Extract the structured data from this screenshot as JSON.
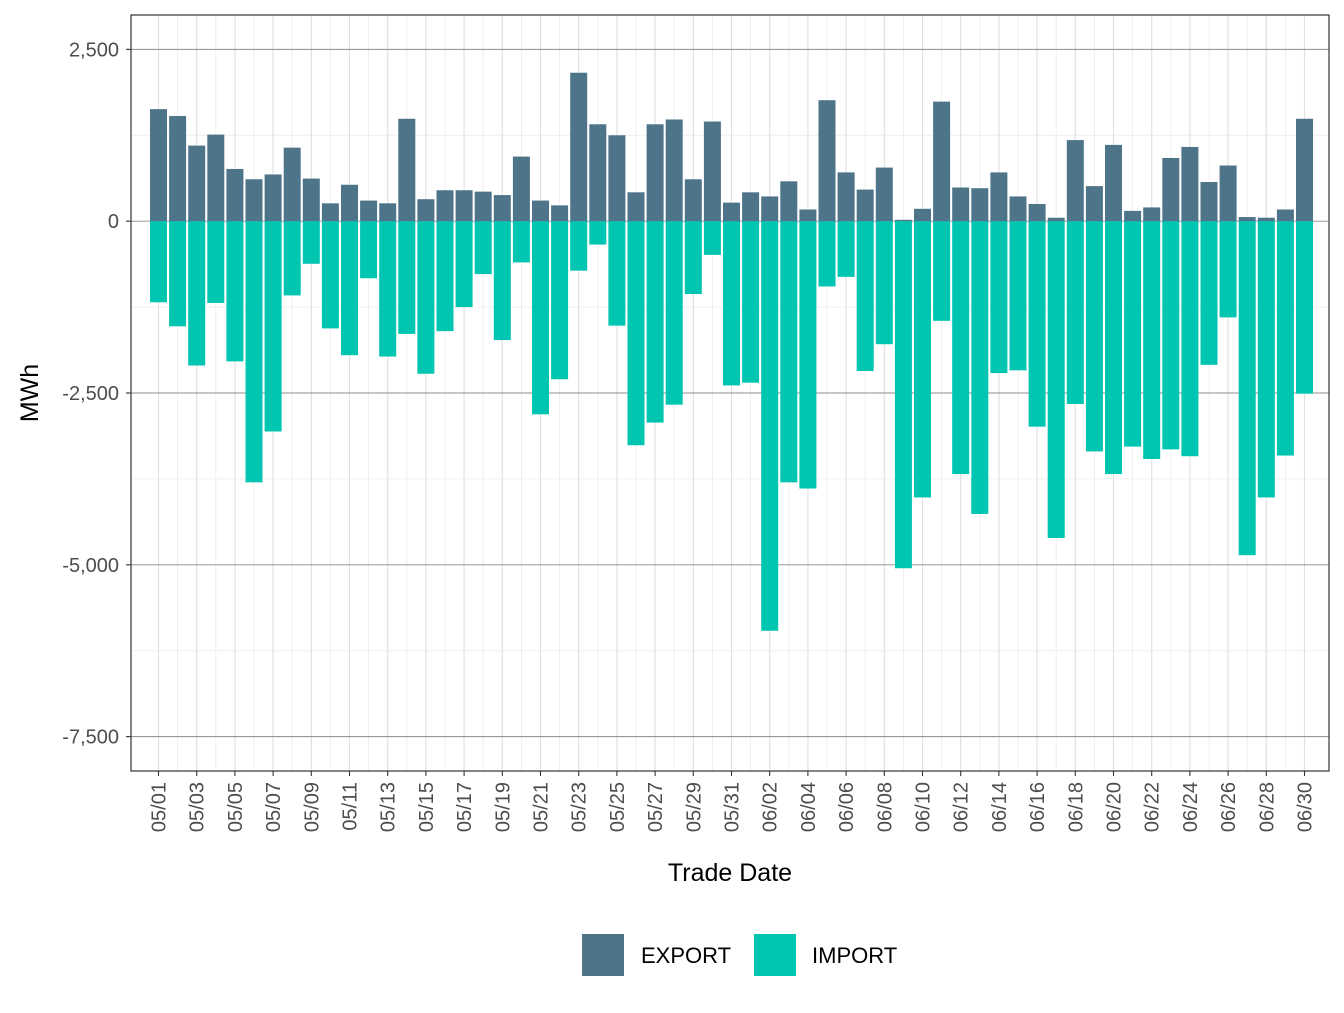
{
  "chart_data": {
    "type": "bar",
    "stacked": true,
    "title": "",
    "xlabel": "Trade Date",
    "ylabel": "MWh",
    "ylim": [
      -8000,
      3000
    ],
    "yticks": [
      2500,
      0,
      -2500,
      -5000,
      -7500
    ],
    "ytick_labels": [
      "2,500",
      "0",
      "-2,500",
      "-5,000",
      "-7,500"
    ],
    "grid": true,
    "legend_position": "bottom",
    "categories": [
      "05/01",
      "05/02",
      "05/03",
      "05/04",
      "05/05",
      "05/06",
      "05/07",
      "05/08",
      "05/09",
      "05/10",
      "05/11",
      "05/12",
      "05/13",
      "05/14",
      "05/15",
      "05/16",
      "05/17",
      "05/18",
      "05/19",
      "05/20",
      "05/21",
      "05/22",
      "05/23",
      "05/24",
      "05/25",
      "05/26",
      "05/27",
      "05/28",
      "05/29",
      "05/30",
      "05/31",
      "06/01",
      "06/02",
      "06/03",
      "06/04",
      "06/05",
      "06/06",
      "06/07",
      "06/08",
      "06/09",
      "06/10",
      "06/11",
      "06/12",
      "06/13",
      "06/14",
      "06/15",
      "06/16",
      "06/17",
      "06/18",
      "06/19",
      "06/20",
      "06/21",
      "06/22",
      "06/23",
      "06/24",
      "06/25",
      "06/26",
      "06/27",
      "06/28",
      "06/29",
      "06/30"
    ],
    "series": [
      {
        "name": "EXPORT",
        "color": "#4e7489",
        "values": [
          1630,
          1530,
          1100,
          1260,
          760,
          610,
          680,
          1070,
          620,
          260,
          530,
          300,
          260,
          1490,
          320,
          450,
          450,
          430,
          380,
          940,
          300,
          230,
          2160,
          1410,
          1250,
          420,
          1410,
          1480,
          610,
          1450,
          270,
          420,
          360,
          580,
          170,
          1760,
          710,
          460,
          780,
          20,
          180,
          1740,
          490,
          480,
          710,
          360,
          250,
          50,
          1180,
          510,
          1110,
          150,
          200,
          920,
          1080,
          570,
          810,
          60,
          50,
          170,
          1490
        ]
      },
      {
        "name": "IMPORT",
        "color": "#00c5b0",
        "values": [
          -1180,
          -1530,
          -2100,
          -1190,
          -2040,
          -3800,
          -3060,
          -1080,
          -620,
          -1560,
          -1950,
          -830,
          -1970,
          -1640,
          -2220,
          -1600,
          -1250,
          -770,
          -1730,
          -600,
          -2810,
          -2300,
          -720,
          -340,
          -1520,
          -3260,
          -2930,
          -2670,
          -1060,
          -490,
          -2390,
          -2350,
          -5960,
          -3800,
          -3890,
          -950,
          -810,
          -2180,
          -1790,
          -5050,
          -4020,
          -1450,
          -3680,
          -4260,
          -2210,
          -2170,
          -2990,
          -4610,
          -2660,
          -3350,
          -3680,
          -3280,
          -3460,
          -3320,
          -3420,
          -2090,
          -1400,
          -4860,
          -4020,
          -3410,
          -2510
        ]
      }
    ],
    "xtick_labels": [
      "05/01",
      "05/03",
      "05/05",
      "05/07",
      "05/09",
      "05/11",
      "05/13",
      "05/15",
      "05/17",
      "05/19",
      "05/21",
      "05/23",
      "05/25",
      "05/27",
      "05/29",
      "05/31",
      "06/02",
      "06/04",
      "06/06",
      "06/08",
      "06/10",
      "06/12",
      "06/14",
      "06/16",
      "06/18",
      "06/20",
      "06/22",
      "06/24",
      "06/26",
      "06/28",
      "06/30"
    ]
  },
  "legend": {
    "items": [
      {
        "label": "EXPORT",
        "color": "#4e7489"
      },
      {
        "label": "IMPORT",
        "color": "#00c5b0"
      }
    ]
  }
}
